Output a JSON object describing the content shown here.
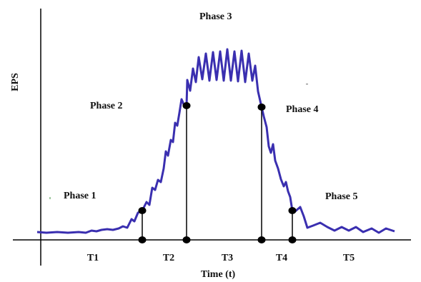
{
  "diagram": {
    "y_axis_label": "EPS",
    "x_axis_label": "Time  (t)",
    "phases": [
      "Phase 1",
      "Phase 2",
      "Phase 3",
      "Phase 4",
      "Phase 5"
    ],
    "intervals": [
      "T1",
      "T2",
      "T3",
      "T4",
      "T5"
    ],
    "colors": {
      "curve": "#3a2fb0",
      "axis": "#000000",
      "marker": "#000000"
    }
  }
}
